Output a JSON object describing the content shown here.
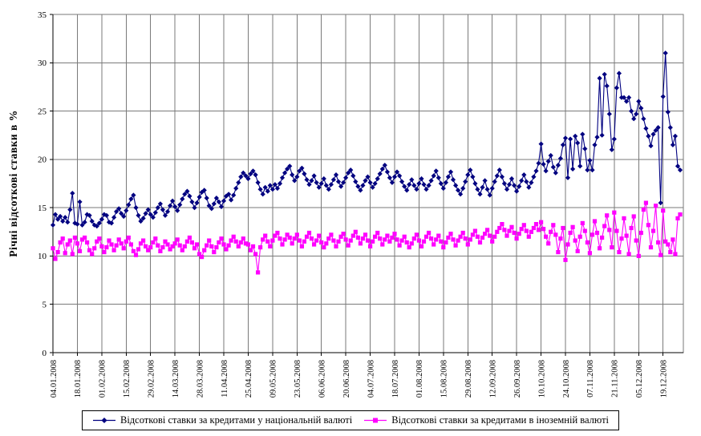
{
  "chart_data": {
    "type": "line",
    "ylabel": "Річні відсоткові ставки в %",
    "ylim": [
      0,
      35
    ],
    "ytick_step": 5,
    "grid": true,
    "legend_position": "bottom",
    "points_per_tick": 10,
    "x_tick_labels": [
      "04.01.2008",
      "18.01.2008",
      "01.02.2008",
      "15.02.2008",
      "29.02.2008",
      "14.03.2008",
      "28.03.2008",
      "11.04.2008",
      "25.04.2008",
      "09.05.2008",
      "23.05.2008",
      "06.06.2008",
      "20.06.2008",
      "04.07.2008",
      "18.07.2008",
      "01.08.2008",
      "15.08.2008",
      "29.08.2008",
      "12.09.2008",
      "26.09.2008",
      "10.10.2008",
      "24.10.2008",
      "07.11.2008",
      "21.11.2008",
      "05.12.2008",
      "19.12.2008"
    ],
    "series": [
      {
        "name": "Відсоткові ставки за кредитами у національній валюті",
        "color": "#000080",
        "marker": "diamond",
        "values": [
          13.2,
          14.3,
          13.8,
          14.1,
          13.6,
          14.0,
          13.5,
          14.8,
          16.5,
          13.4,
          13.3,
          15.6,
          13.2,
          13.5,
          14.3,
          14.2,
          13.6,
          13.2,
          13.1,
          13.4,
          13.8,
          14.3,
          14.2,
          13.5,
          13.4,
          14.0,
          14.6,
          14.9,
          14.4,
          14.1,
          14.7,
          15.3,
          15.9,
          16.3,
          15.0,
          14.2,
          13.6,
          13.9,
          14.4,
          14.8,
          14.3,
          14.0,
          14.5,
          15.0,
          15.4,
          14.8,
          14.2,
          14.6,
          15.2,
          15.7,
          15.1,
          14.7,
          15.3,
          15.9,
          16.4,
          16.7,
          16.2,
          15.6,
          15.0,
          15.5,
          16.1,
          16.6,
          16.8,
          16.0,
          15.2,
          14.9,
          15.4,
          16.0,
          15.6,
          15.1,
          15.7,
          16.2,
          16.4,
          15.8,
          16.3,
          17.0,
          17.6,
          18.2,
          18.6,
          18.3,
          18.0,
          18.5,
          18.8,
          18.4,
          17.6,
          16.9,
          16.4,
          17.1,
          16.7,
          17.3,
          16.9,
          17.4,
          17.0,
          17.5,
          18.1,
          18.6,
          19.0,
          19.3,
          18.4,
          17.8,
          18.2,
          18.8,
          19.1,
          18.5,
          17.9,
          17.4,
          17.8,
          18.3,
          17.6,
          17.1,
          17.5,
          18.0,
          17.3,
          16.9,
          17.4,
          17.9,
          18.4,
          17.7,
          17.2,
          17.6,
          18.1,
          18.6,
          18.9,
          18.3,
          17.7,
          17.2,
          16.8,
          17.3,
          17.8,
          18.2,
          17.6,
          17.1,
          17.5,
          18.0,
          18.5,
          19.0,
          19.4,
          18.7,
          18.1,
          17.6,
          18.2,
          18.7,
          18.3,
          17.7,
          17.2,
          16.8,
          17.4,
          17.9,
          17.3,
          16.9,
          17.5,
          18.0,
          17.4,
          16.9,
          17.3,
          17.8,
          18.3,
          18.8,
          18.1,
          17.5,
          17.0,
          17.6,
          18.2,
          18.7,
          17.9,
          17.3,
          16.8,
          16.4,
          17.0,
          17.7,
          18.4,
          18.9,
          18.2,
          17.5,
          16.9,
          16.4,
          17.1,
          17.8,
          16.9,
          16.3,
          17.0,
          17.7,
          18.3,
          18.9,
          18.2,
          17.5,
          16.9,
          17.4,
          18.0,
          17.3,
          16.7,
          17.2,
          17.8,
          18.4,
          17.7,
          17.1,
          17.6,
          18.2,
          18.8,
          19.6,
          21.6,
          19.5,
          18.8,
          19.8,
          20.4,
          19.2,
          18.6,
          19.4,
          20.1,
          21.5,
          22.2,
          18.1,
          22.1,
          19.0,
          22.4,
          21.7,
          19.3,
          22.6,
          21.1,
          18.9,
          19.9,
          18.9,
          21.5,
          22.3,
          28.4,
          22.5,
          28.8,
          27.6,
          24.7,
          21.0,
          22.1,
          27.4,
          28.9,
          26.4,
          26.4,
          26.0,
          26.4,
          25.0,
          24.2,
          24.7,
          26.0,
          25.3,
          24.2,
          23.2,
          22.4,
          21.4,
          22.6,
          23.0,
          23.3,
          15.5,
          26.5,
          31.0,
          24.9,
          23.3,
          21.5,
          22.4,
          19.3,
          18.9
        ]
      },
      {
        "name": "Відсоткові ставки за кредитами в іноземній валюті",
        "color": "#FF00FF",
        "marker": "square",
        "values": [
          10.8,
          9.7,
          10.4,
          11.4,
          11.8,
          10.3,
          11.2,
          11.6,
          10.2,
          11.9,
          11.3,
          10.5,
          11.7,
          11.9,
          11.4,
          10.6,
          10.2,
          10.8,
          11.5,
          11.8,
          11.0,
          10.4,
          10.9,
          11.6,
          11.2,
          10.6,
          11.1,
          11.7,
          11.3,
          10.8,
          11.5,
          11.9,
          11.2,
          10.5,
          10.1,
          10.7,
          11.3,
          11.6,
          11.0,
          10.6,
          10.9,
          11.4,
          11.8,
          11.1,
          10.5,
          10.9,
          11.5,
          11.2,
          10.7,
          11.0,
          11.3,
          11.7,
          11.1,
          10.6,
          11.0,
          11.5,
          11.9,
          11.4,
          10.8,
          11.2,
          10.2,
          9.9,
          10.6,
          11.1,
          11.6,
          11.0,
          10.4,
          10.9,
          11.4,
          11.8,
          11.2,
          10.7,
          11.1,
          11.6,
          12.0,
          11.5,
          11.0,
          11.4,
          11.8,
          11.3,
          11.2,
          10.6,
          11.0,
          10.2,
          8.3,
          10.9,
          11.7,
          12.1,
          11.5,
          11.0,
          11.6,
          12.1,
          12.4,
          11.8,
          11.2,
          11.7,
          12.2,
          11.9,
          11.3,
          11.8,
          12.2,
          11.6,
          11.0,
          11.5,
          12.0,
          12.4,
          11.8,
          11.2,
          11.6,
          12.1,
          11.4,
          10.9,
          11.3,
          11.8,
          12.2,
          11.6,
          11.0,
          11.5,
          12.0,
          12.3,
          11.7,
          11.1,
          11.6,
          12.1,
          12.5,
          11.9,
          11.3,
          11.8,
          12.2,
          11.6,
          11.0,
          11.5,
          12.0,
          12.4,
          11.8,
          11.2,
          11.7,
          12.1,
          11.5,
          11.9,
          12.3,
          11.7,
          11.1,
          11.6,
          12.0,
          11.4,
          10.9,
          11.3,
          11.8,
          12.2,
          11.6,
          11.0,
          11.5,
          12.0,
          12.4,
          11.8,
          11.2,
          11.7,
          12.1,
          11.5,
          10.9,
          11.4,
          11.9,
          12.3,
          11.7,
          11.1,
          11.6,
          12.0,
          12.4,
          11.8,
          11.2,
          11.7,
          12.2,
          12.6,
          12.0,
          11.4,
          11.9,
          12.3,
          12.7,
          12.1,
          11.5,
          12.0,
          12.5,
          12.9,
          13.3,
          12.7,
          12.1,
          12.6,
          13.0,
          12.4,
          11.8,
          12.3,
          12.8,
          13.2,
          12.6,
          12.0,
          12.5,
          12.9,
          13.3,
          12.7,
          13.5,
          12.8,
          12.0,
          11.3,
          12.5,
          13.2,
          12.2,
          10.4,
          11.8,
          12.9,
          9.6,
          11.2,
          12.4,
          13.0,
          11.6,
          10.5,
          12.0,
          13.4,
          12.6,
          11.4,
          10.3,
          12.2,
          13.6,
          12.4,
          10.8,
          11.9,
          13.1,
          14.2,
          12.7,
          10.9,
          14.5,
          12.6,
          10.4,
          11.8,
          13.9,
          12.1,
          10.2,
          12.9,
          14.1,
          11.6,
          10.0,
          12.4,
          14.8,
          15.5,
          13.2,
          10.9,
          12.6,
          15.2,
          11.4,
          10.1,
          14.7,
          11.5,
          11.2,
          10.4,
          11.7,
          10.2,
          13.9,
          14.3
        ]
      }
    ]
  }
}
